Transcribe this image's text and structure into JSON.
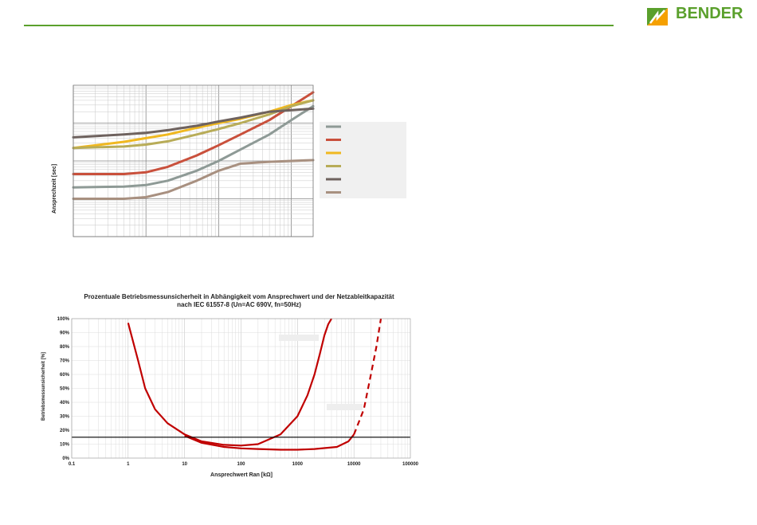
{
  "header": {
    "logo_text": "BENDER",
    "brand_green": "#5aa02c",
    "brand_orange": "#f5a000",
    "rule_color": "#5aa02c"
  },
  "chart_data": [
    {
      "type": "line",
      "title": "",
      "xlabel": "",
      "ylabel": "Ansprechzeit [sec]",
      "xscale": "log",
      "yscale": "log",
      "xlim": [
        1,
        2000
      ],
      "ylim": [
        0.01,
        100
      ],
      "grid": true,
      "legend_position": "right",
      "series": [
        {
          "color": "#8e9a96",
          "x": [
            1,
            5,
            10,
            20,
            50,
            100,
            200,
            500,
            1000,
            2000
          ],
          "y": [
            0.2,
            0.21,
            0.23,
            0.3,
            0.55,
            1,
            2,
            5,
            12,
            28
          ]
        },
        {
          "color": "#c9503c",
          "x": [
            1,
            5,
            10,
            20,
            50,
            100,
            200,
            500,
            1000,
            2000
          ],
          "y": [
            0.45,
            0.45,
            0.5,
            0.7,
            1.4,
            2.6,
            5,
            12,
            28,
            65
          ]
        },
        {
          "color": "#f0b820",
          "x": [
            1,
            5,
            10,
            20,
            50,
            100,
            200,
            500,
            1000,
            2000
          ],
          "y": [
            2.2,
            3.2,
            4,
            5,
            7.5,
            10,
            13,
            20,
            30,
            40
          ]
        },
        {
          "color": "#b8ac58",
          "x": [
            1,
            5,
            10,
            20,
            50,
            100,
            200,
            500,
            1000,
            2000
          ],
          "y": [
            2.2,
            2.4,
            2.7,
            3.3,
            5,
            7,
            10,
            17,
            28,
            40
          ]
        },
        {
          "color": "#6e625e",
          "x": [
            1,
            5,
            10,
            20,
            50,
            100,
            200,
            500,
            1000,
            2000
          ],
          "y": [
            4.2,
            5,
            5.5,
            6.5,
            8.5,
            11,
            14,
            20,
            22,
            24
          ]
        },
        {
          "color": "#a89080",
          "x": [
            1,
            5,
            10,
            20,
            50,
            100,
            200,
            500,
            1000,
            2000
          ],
          "y": [
            0.1,
            0.1,
            0.11,
            0.15,
            0.3,
            0.55,
            0.85,
            0.95,
            1,
            1.05
          ]
        }
      ]
    },
    {
      "type": "line",
      "title": "Prozentuale Betriebsmessunsicherheit in Abhängigkeit vom Ansprechwert und der Netzableitkapazität",
      "subtitle": "nach IEC 61557-8 (Un=AC 690V, fn=50Hz)",
      "xlabel": "Ansprechwert Ran [kΩ]",
      "ylabel": "Betriebsmessunsicherheit [%]",
      "xscale": "log",
      "xlim": [
        0.1,
        100000
      ],
      "ylim": [
        0,
        100
      ],
      "x_ticks": [
        "0.1",
        "1",
        "10",
        "100",
        "1000",
        "10000",
        "100000"
      ],
      "y_ticks": [
        "0%",
        "10%",
        "20%",
        "30%",
        "40%",
        "50%",
        "60%",
        "70%",
        "80%",
        "90%",
        "100%"
      ],
      "grid": true,
      "series": [
        {
          "color": "#c00000",
          "style": "solid",
          "x": [
            1,
            1.5,
            2,
            3,
            5,
            10,
            20,
            50,
            100,
            200,
            500,
            1000,
            1500,
            2000,
            2500,
            3000,
            3500,
            4000
          ],
          "y": [
            97,
            70,
            50,
            35,
            25,
            17,
            12,
            9.5,
            9,
            10,
            17,
            30,
            45,
            60,
            75,
            88,
            96,
            100
          ]
        },
        {
          "color": "#c00000",
          "style": "solid",
          "x": [
            10,
            20,
            50,
            100,
            200,
            500,
            1000,
            2000,
            5000,
            8000,
            10000
          ],
          "y": [
            16,
            11,
            8,
            7,
            6.5,
            6,
            6,
            6.5,
            8,
            12,
            17
          ]
        },
        {
          "color": "#c00000",
          "style": "dashed",
          "x": [
            10000,
            15000,
            20000,
            25000,
            30000
          ],
          "y": [
            17,
            35,
            60,
            80,
            100
          ]
        },
        {
          "color": "#000000",
          "style": "solid",
          "x": [
            0.1,
            100000
          ],
          "y": [
            15,
            15
          ]
        }
      ]
    }
  ]
}
